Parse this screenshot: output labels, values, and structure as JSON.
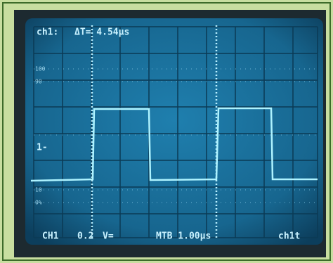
{
  "screen": {
    "readout_top": {
      "channel": "ch1:",
      "delta_t": "ΔT= 4.54μs"
    },
    "scale_labels": [
      "100",
      "90",
      "10",
      "0%"
    ],
    "marker": "1-",
    "readout_bottom": {
      "channel": "CH1",
      "volts": "0.2",
      "coupling": "V=",
      "timebase": "MTB 1.00μs",
      "trigger": "ch1t"
    }
  }
}
